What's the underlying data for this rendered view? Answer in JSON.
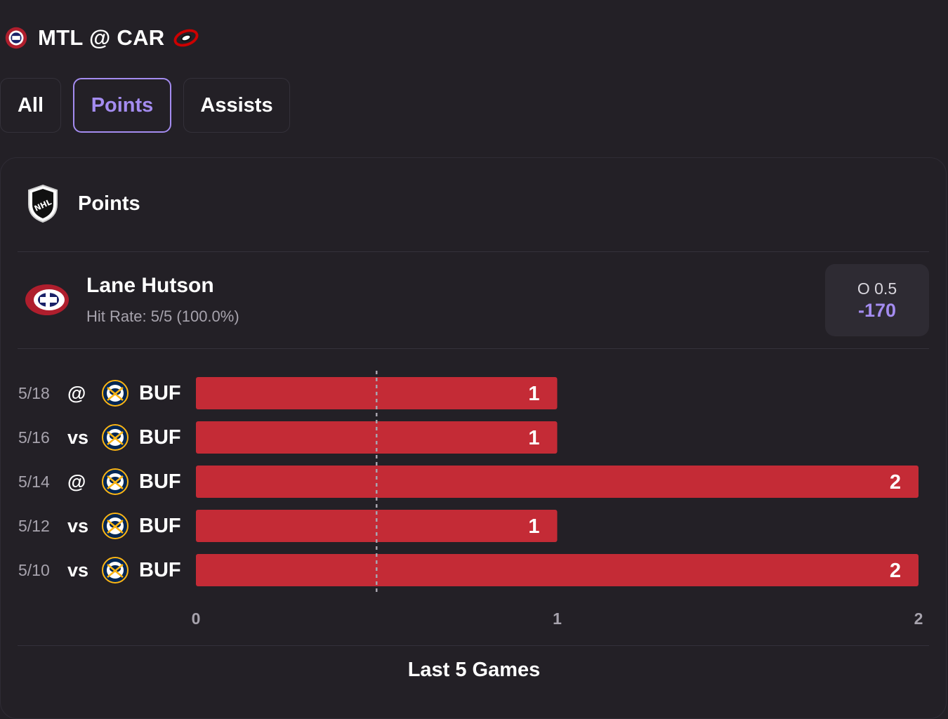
{
  "header": {
    "title": "MTL @ CAR",
    "away_logo_icon": "canadiens-logo-icon",
    "home_logo_icon": "hurricanes-logo-icon"
  },
  "tabs": [
    {
      "label": "All",
      "active": false
    },
    {
      "label": "Points",
      "active": true
    },
    {
      "label": "Assists",
      "active": false
    }
  ],
  "card": {
    "league_icon": "nhl-shield-icon",
    "market_label": "Points",
    "player": {
      "name": "Lane Hutson",
      "team_icon": "canadiens-logo-icon",
      "hit_rate": "Hit Rate: 5/5 (100.0%)"
    },
    "odds": {
      "line": "O 0.5",
      "price": "-170"
    },
    "footer": "Last 5 Games"
  },
  "colors": {
    "background": "#232026",
    "accent": "#a48cf0",
    "bar": "#c42b36",
    "muted_text": "#a7a3ad"
  },
  "chart_data": {
    "type": "bar",
    "orientation": "horizontal",
    "games": [
      {
        "date": "5/18",
        "location": "@",
        "opponent": "BUF",
        "opponent_icon": "sabres-logo-icon",
        "value": 1
      },
      {
        "date": "5/16",
        "location": "vs",
        "opponent": "BUF",
        "opponent_icon": "sabres-logo-icon",
        "value": 1
      },
      {
        "date": "5/14",
        "location": "@",
        "opponent": "BUF",
        "opponent_icon": "sabres-logo-icon",
        "value": 2
      },
      {
        "date": "5/12",
        "location": "vs",
        "opponent": "BUF",
        "opponent_icon": "sabres-logo-icon",
        "value": 1
      },
      {
        "date": "5/10",
        "location": "vs",
        "opponent": "BUF",
        "opponent_icon": "sabres-logo-icon",
        "value": 2
      }
    ],
    "xlim": [
      0,
      2
    ],
    "xticks": [
      "0",
      "1",
      "2"
    ],
    "threshold": 0.5,
    "grid": false
  }
}
